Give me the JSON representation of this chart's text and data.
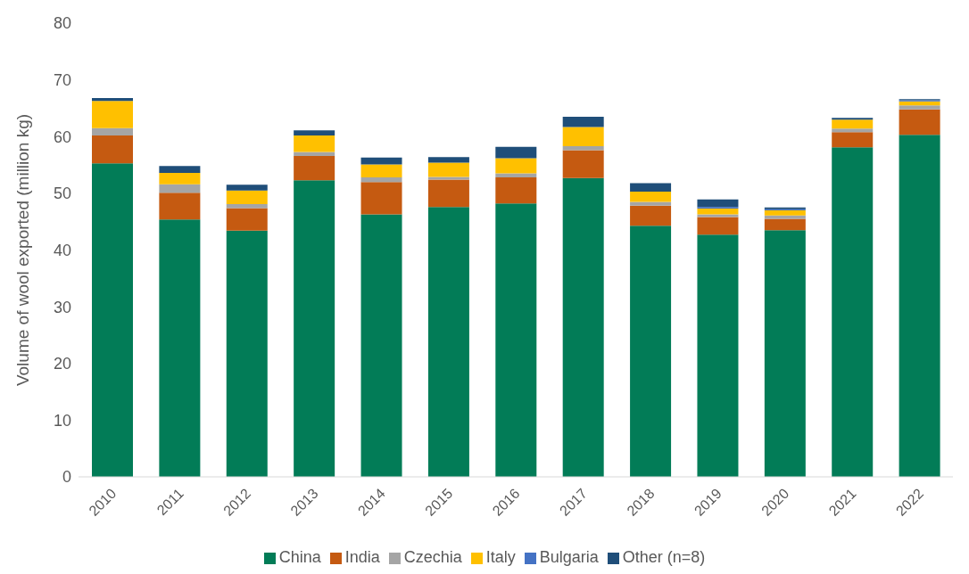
{
  "chart_data": {
    "type": "bar",
    "stacked": true,
    "ylabel": "Volume of wool exported (million kg)",
    "categories": [
      "2010",
      "2011",
      "2012",
      "2013",
      "2014",
      "2015",
      "2016",
      "2017",
      "2018",
      "2019",
      "2020",
      "2021",
      "2022"
    ],
    "series": [
      {
        "name": "China",
        "color": "#027c57",
        "values": [
          55.3,
          45.4,
          43.4,
          52.3,
          46.3,
          47.6,
          48.2,
          52.7,
          44.3,
          42.7,
          43.5,
          58.1,
          60.3
        ]
      },
      {
        "name": "India",
        "color": "#c55a11",
        "values": [
          4.9,
          4.7,
          4.0,
          4.3,
          5.7,
          4.8,
          4.6,
          4.9,
          3.5,
          3.1,
          2.0,
          2.7,
          4.5
        ]
      },
      {
        "name": "Czechia",
        "color": "#a5a5a5",
        "values": [
          1.3,
          1.5,
          0.7,
          0.7,
          0.8,
          0.5,
          0.7,
          0.7,
          0.7,
          0.5,
          0.6,
          0.6,
          0.7
        ]
      },
      {
        "name": "Italy",
        "color": "#ffc000",
        "values": [
          4.8,
          2.0,
          2.4,
          2.9,
          2.3,
          2.5,
          2.7,
          3.4,
          1.8,
          1.0,
          0.9,
          1.6,
          0.7
        ]
      },
      {
        "name": "Bulgaria",
        "color": "#4472c4",
        "values": [
          null,
          null,
          null,
          null,
          null,
          null,
          null,
          null,
          null,
          0.3,
          0.2,
          null,
          0.2
        ]
      },
      {
        "name": "Other (n=8)",
        "color": "#1f4e79",
        "values": [
          0.5,
          1.2,
          1.0,
          0.9,
          1.2,
          1.0,
          2.0,
          1.8,
          1.5,
          1.3,
          0.3,
          0.3,
          0.2
        ]
      }
    ],
    "ylim": [
      0,
      80
    ],
    "yticks": [
      0,
      10,
      20,
      30,
      40,
      50,
      60,
      70,
      80
    ],
    "grid": false,
    "legend": "bottom"
  }
}
